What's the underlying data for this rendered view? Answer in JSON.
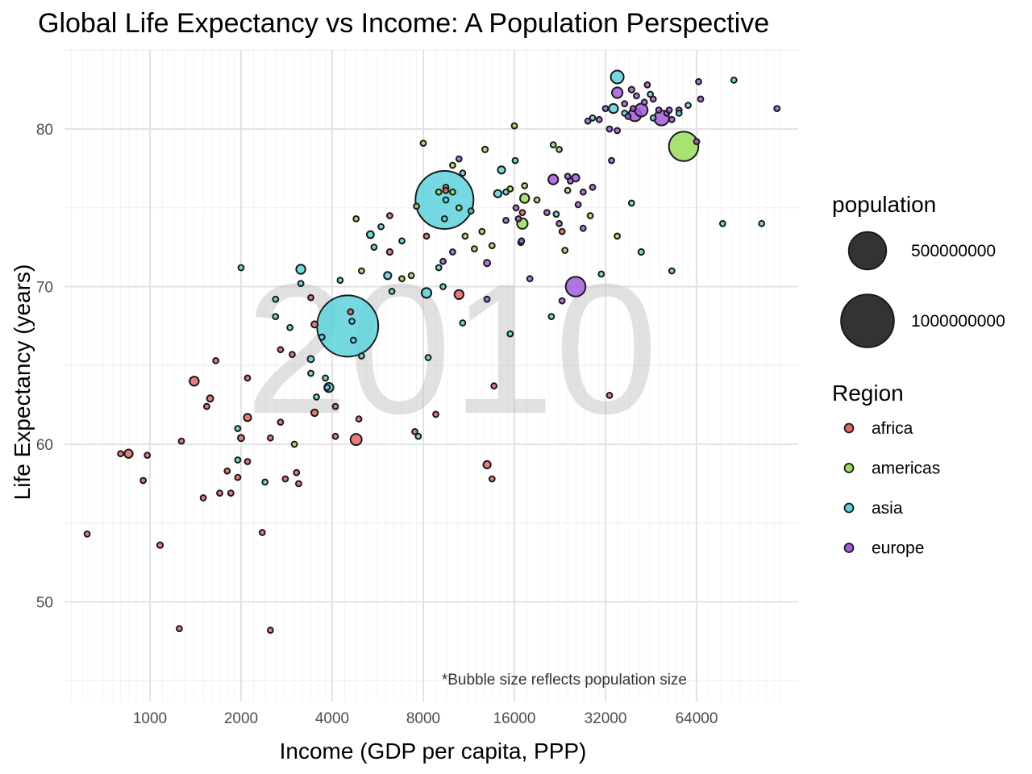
{
  "chart_data": {
    "type": "scatter",
    "title": "Global Life Expectancy vs Income: A Population Perspective",
    "xlabel": "Income (GDP per capita, PPP)",
    "ylabel": "Life Expectancy (years)",
    "x_scale": "log2",
    "xlim": [
      450,
      135000
    ],
    "ylim": [
      43.5,
      85
    ],
    "x_ticks": [
      "1000",
      "2000",
      "4000",
      "8000",
      "16000",
      "32000",
      "64000"
    ],
    "x_tick_values": [
      1000,
      2000,
      4000,
      8000,
      16000,
      32000,
      64000
    ],
    "y_ticks": [
      "50",
      "60",
      "70",
      "80"
    ],
    "y_tick_values": [
      50,
      60,
      70,
      80
    ],
    "grid": true,
    "year_label": "2010",
    "caption": "*Bubble size reflects population size",
    "size_legend": {
      "title": "population",
      "labels": [
        "500000000",
        "1000000000"
      ],
      "values": [
        500000000,
        1000000000
      ]
    },
    "color_legend": {
      "title": "Region",
      "labels": [
        "africa",
        "americas",
        "asia",
        "europe"
      ]
    },
    "colors": {
      "africa": "#E3665E",
      "americas": "#98DD5B",
      "asia": "#5CD2DC",
      "europe": "#A55CE0"
    },
    "legend_position": "right",
    "series": [
      {
        "name": "africa",
        "points": [
          [
            620,
            54.3,
            8000000
          ],
          [
            800,
            59.4,
            6000000
          ],
          [
            850,
            59.4,
            25000000
          ],
          [
            950,
            57.7,
            10000000
          ],
          [
            980,
            59.3,
            8000000
          ],
          [
            1080,
            53.6,
            12000000
          ],
          [
            1250,
            48.3,
            5000000
          ],
          [
            1270,
            60.2,
            5000000
          ],
          [
            1400,
            64.0,
            30000000
          ],
          [
            1500,
            56.6,
            5000000
          ],
          [
            1540,
            62.4,
            4000000
          ],
          [
            1580,
            62.9,
            15000000
          ],
          [
            1650,
            65.3,
            6000000
          ],
          [
            1700,
            56.9,
            8000000
          ],
          [
            1800,
            58.3,
            9000000
          ],
          [
            1850,
            56.9,
            3000000
          ],
          [
            1950,
            57.9,
            8000000
          ],
          [
            2000,
            60.4,
            15000000
          ],
          [
            2100,
            61.7,
            20000000
          ],
          [
            2100,
            64.2,
            3000000
          ],
          [
            2100,
            58.9,
            8000000
          ],
          [
            2350,
            54.4,
            10000000
          ],
          [
            2500,
            48.2,
            3000000
          ],
          [
            2500,
            60.4,
            3000000
          ],
          [
            2700,
            61.4,
            6000000
          ],
          [
            2700,
            66.0,
            6000000
          ],
          [
            2800,
            57.8,
            10000000
          ],
          [
            2950,
            65.7,
            1500000
          ],
          [
            3050,
            58.2,
            10000000
          ],
          [
            3100,
            57.5,
            8000000
          ],
          [
            3500,
            67.6,
            15000000
          ],
          [
            3500,
            62.0,
            16000000
          ],
          [
            3400,
            69.3,
            900000
          ],
          [
            4100,
            62.4,
            10000000
          ],
          [
            4100,
            60.5,
            6000000
          ],
          [
            4600,
            68.4,
            3000000
          ],
          [
            4800,
            60.3,
            45000000
          ],
          [
            4900,
            61.6,
            4000000
          ],
          [
            6200,
            74.5,
            1500000
          ],
          [
            6200,
            72.2,
            12000000
          ],
          [
            7500,
            60.8,
            10000000
          ],
          [
            8200,
            73.2,
            5000000
          ],
          [
            8800,
            61.9,
            2000000
          ],
          [
            9500,
            76.1,
            2000000
          ],
          [
            9500,
            76.3,
            3000000
          ],
          [
            10500,
            69.5,
            30000000
          ],
          [
            13000,
            58.7,
            20000000
          ],
          [
            13500,
            57.8,
            2000000
          ],
          [
            13700,
            63.7,
            2000000
          ],
          [
            17000,
            74.7,
            1500000
          ],
          [
            23000,
            73.5,
            1000000
          ],
          [
            33000,
            63.1,
            1000000
          ]
        ]
      },
      {
        "name": "americas",
        "points": [
          [
            3000,
            60.0,
            8000000
          ],
          [
            4800,
            74.3,
            4000000
          ],
          [
            5000,
            71.0,
            5000000
          ],
          [
            6800,
            70.5,
            3000000
          ],
          [
            7300,
            70.7,
            6000000
          ],
          [
            7600,
            75.1,
            4000000
          ],
          [
            8000,
            79.1,
            5000000
          ],
          [
            9000,
            76.0,
            7000000
          ],
          [
            10000,
            76.0,
            8000000
          ],
          [
            10000,
            77.7,
            6000000
          ],
          [
            10500,
            75.0,
            10000000
          ],
          [
            11000,
            73.2,
            1500000
          ],
          [
            11800,
            72.4,
            2000000
          ],
          [
            12500,
            73.5,
            5000000
          ],
          [
            12800,
            78.7,
            12000000
          ],
          [
            13500,
            72.6,
            1500000
          ],
          [
            15500,
            76.2,
            1500000
          ],
          [
            16000,
            80.2,
            3000000
          ],
          [
            16800,
            72.8,
            3000000
          ],
          [
            17000,
            74.0,
            40000000
          ],
          [
            17300,
            75.6,
            30000000
          ],
          [
            17300,
            76.4,
            2000000
          ],
          [
            19000,
            75.5,
            10000000
          ],
          [
            21500,
            79.0,
            5000000
          ],
          [
            22500,
            78.7,
            3000000
          ],
          [
            23500,
            72.3,
            1500000
          ],
          [
            24000,
            76.1,
            10000000
          ],
          [
            28500,
            74.5,
            2000000
          ],
          [
            35000,
            73.2,
            1500000
          ],
          [
            58000,
            78.9,
            310000000
          ]
        ]
      },
      {
        "name": "asia",
        "points": [
          [
            1950,
            61.0,
            10000000
          ],
          [
            1950,
            59.0,
            1500000
          ],
          [
            2000,
            71.2,
            9000000
          ],
          [
            2400,
            57.6,
            1500000
          ],
          [
            2600,
            69.2,
            9000000
          ],
          [
            2600,
            68.1,
            5000000
          ],
          [
            2900,
            67.4,
            6000000
          ],
          [
            3150,
            71.1,
            30000000
          ],
          [
            3150,
            70.2,
            2000000
          ],
          [
            3400,
            65.4,
            15000000
          ],
          [
            3400,
            64.5,
            1500000
          ],
          [
            3550,
            63.0,
            6000000
          ],
          [
            3700,
            66.8,
            1500000
          ],
          [
            3800,
            64.2,
            2000000
          ],
          [
            3850,
            63.6,
            5000000
          ],
          [
            3900,
            63.6,
            30000000
          ],
          [
            4250,
            70.4,
            3000000
          ],
          [
            4500,
            67.5,
            1340000000
          ],
          [
            4650,
            67.8,
            8000000
          ],
          [
            4700,
            66.6,
            8000000
          ],
          [
            5000,
            65.6,
            4000000
          ],
          [
            5350,
            73.3,
            18000000
          ],
          [
            5500,
            72.5,
            1500000
          ],
          [
            5800,
            73.8,
            2000000
          ],
          [
            6100,
            70.7,
            20000000
          ],
          [
            6300,
            69.7,
            1500000
          ],
          [
            6800,
            72.9,
            7000000
          ],
          [
            7700,
            60.5,
            1500000
          ],
          [
            8200,
            69.6,
            35000000
          ],
          [
            8300,
            65.5,
            3000000
          ],
          [
            9000,
            71.2,
            1500000
          ],
          [
            9300,
            70.0,
            5000000
          ],
          [
            9400,
            75.5,
            1200000000
          ],
          [
            9400,
            74.3,
            2500000
          ],
          [
            9500,
            75.5,
            8000000
          ],
          [
            10800,
            77.2,
            3000000
          ],
          [
            10800,
            67.7,
            2000000
          ],
          [
            11500,
            74.8,
            8000000
          ],
          [
            14100,
            75.9,
            20000000
          ],
          [
            14500,
            77.4,
            20000000
          ],
          [
            15000,
            76.0,
            3000000
          ],
          [
            15500,
            67.0,
            1500000
          ],
          [
            16100,
            78.0,
            1500000
          ],
          [
            21200,
            68.1,
            9000000
          ],
          [
            22000,
            74.6,
            5000000
          ],
          [
            29000,
            80.7,
            8000000
          ],
          [
            31000,
            70.8,
            3000000
          ],
          [
            34000,
            81.3,
            30000000
          ],
          [
            35000,
            83.3,
            60000000
          ],
          [
            37000,
            81.0,
            3000000
          ],
          [
            39000,
            75.3,
            2000000
          ],
          [
            42000,
            72.2,
            12000000
          ],
          [
            45000,
            82.2,
            8000000
          ],
          [
            53000,
            71.0,
            6000000
          ],
          [
            56000,
            81.0,
            3000000
          ],
          [
            60000,
            81.5,
            2000000
          ],
          [
            78000,
            74.0,
            1500000
          ],
          [
            85000,
            83.1,
            3000000
          ],
          [
            105000,
            74.0,
            3000000
          ],
          [
            46000,
            80.7,
            2000000
          ]
        ]
      },
      {
        "name": "europe",
        "points": [
          [
            9300,
            71.6,
            2000000
          ],
          [
            10000,
            72.2,
            3000000
          ],
          [
            10500,
            78.1,
            2000000
          ],
          [
            13000,
            71.5,
            15000000
          ],
          [
            13000,
            69.2,
            6000000
          ],
          [
            15000,
            74.2,
            2000000
          ],
          [
            16200,
            75.0,
            2000000
          ],
          [
            16500,
            74.3,
            8000000
          ],
          [
            16900,
            72.9,
            2000000
          ],
          [
            18000,
            70.5,
            6000000
          ],
          [
            20500,
            74.7,
            10000000
          ],
          [
            21500,
            76.8,
            35000000
          ],
          [
            22500,
            74.0,
            2000000
          ],
          [
            23000,
            69.1,
            8000000
          ],
          [
            24000,
            77.0,
            5000000
          ],
          [
            24500,
            76.7,
            4000000
          ],
          [
            25500,
            70.0,
            140000000
          ],
          [
            25500,
            76.9,
            20000000
          ],
          [
            26000,
            75.2,
            4000000
          ],
          [
            27000,
            73.7,
            3000000
          ],
          [
            27000,
            76.0,
            6000000
          ],
          [
            28000,
            80.5,
            2000000
          ],
          [
            29000,
            76.3,
            2000000
          ],
          [
            30500,
            80.6,
            10000000
          ],
          [
            32000,
            81.3,
            2000000
          ],
          [
            33000,
            80.0,
            5000000
          ],
          [
            33500,
            78.0,
            6000000
          ],
          [
            35000,
            79.9,
            3000000
          ],
          [
            35000,
            82.3,
            40000000
          ],
          [
            37000,
            81.6,
            2000000
          ],
          [
            38000,
            80.8,
            2000000
          ],
          [
            39000,
            82.5,
            12000000
          ],
          [
            39500,
            81.3,
            5000000
          ],
          [
            40000,
            80.9,
            60000000
          ],
          [
            40500,
            82.1,
            8000000
          ],
          [
            42000,
            81.2,
            60000000
          ],
          [
            43000,
            81.7,
            6000000
          ],
          [
            44000,
            82.8,
            2000000
          ],
          [
            46000,
            81.9,
            9000000
          ],
          [
            48000,
            81.2,
            8000000
          ],
          [
            49000,
            80.7,
            80000000
          ],
          [
            51000,
            81.0,
            10000000
          ],
          [
            52000,
            81.2,
            8000000
          ],
          [
            53000,
            80.6,
            6000000
          ],
          [
            56000,
            81.2,
            8000000
          ],
          [
            64000,
            79.2,
            2000000
          ],
          [
            65000,
            83.0,
            8000000
          ],
          [
            66000,
            81.9,
            1500000
          ],
          [
            118000,
            81.3,
            2000000
          ]
        ]
      }
    ]
  }
}
